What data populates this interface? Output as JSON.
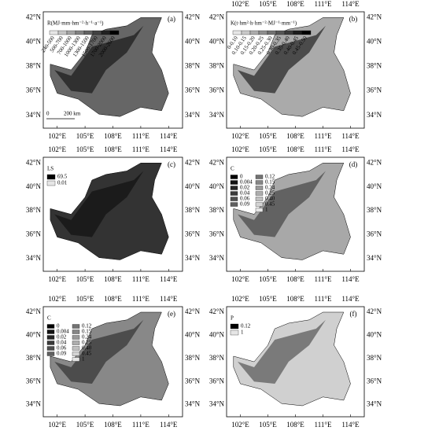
{
  "longitude_labels": [
    "102°E",
    "105°E",
    "108°E",
    "111°E",
    "114°E"
  ],
  "latitude_labels": [
    "42°N",
    "40°N",
    "38°N",
    "36°N",
    "34°N"
  ],
  "panels": [
    {
      "label": "(a)",
      "legend_title": "R(MJ·mm·hm⁻²·h⁻¹·a⁻¹)",
      "legend_items": [
        "240-500",
        "500-700",
        "700-1000",
        "1000-1300",
        "1300-1500",
        "1500-1700",
        "1700-2000",
        "2000-2600"
      ],
      "scale_bar": [
        "0",
        "200 km"
      ]
    },
    {
      "label": "(b)",
      "legend_title": "K(t·hm²·h·hm⁻²·MJ⁻¹·mm⁻¹)",
      "legend_items": [
        "0-0.10",
        "0.10-0.15",
        "0.15-0.20",
        "0.20-0.25",
        "0.25-0.30",
        "0.30-0.35",
        "0.35-0.40",
        "0.40-0.45",
        "0.45-0.50"
      ]
    },
    {
      "label": "(c)",
      "legend_title": "LS",
      "legend_items": [
        "69.5",
        "0.01"
      ]
    },
    {
      "label": "(d)",
      "legend_title": "C",
      "legend_items": [
        "0",
        "0.004",
        "0.02",
        "0.04",
        "0.06",
        "0.09",
        "0.12",
        "0.15",
        "0.24",
        "0.25",
        "0.40",
        "0.45",
        "1"
      ]
    },
    {
      "label": "(e)",
      "legend_title": "C",
      "legend_items": [
        "0",
        "0.004",
        "0.02",
        "0.04",
        "0.06",
        "0.09",
        "0.12",
        "0.15",
        "0.24",
        "0.25",
        "0.40",
        "0.45",
        "1"
      ]
    },
    {
      "label": "(f)",
      "legend_title": "P",
      "legend_items": [
        "0.12",
        "1"
      ]
    }
  ]
}
